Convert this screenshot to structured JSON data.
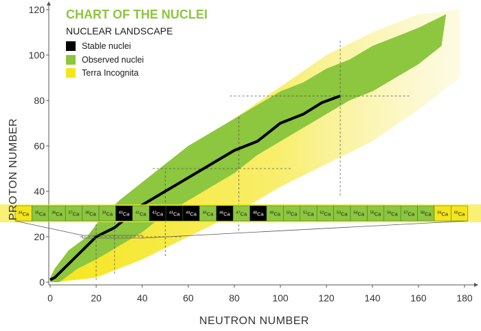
{
  "chart_data": {
    "type": "heatmap",
    "title": "CHART OF THE NUCLEI",
    "subtitle": "NUCLEAR LANDSCAPE",
    "xlabel": "NEUTRON NUMBER",
    "ylabel": "PROTON NUMBER",
    "xlim": [
      0,
      182
    ],
    "ylim": [
      -2,
      122
    ],
    "xticks": [
      0,
      20,
      40,
      60,
      80,
      100,
      120,
      140,
      160,
      180
    ],
    "yticks": [
      0,
      20,
      40,
      60,
      80,
      100,
      120
    ],
    "grid": false,
    "legend_position": "top-left",
    "colors": {
      "stable": "#000000",
      "observed": "#8dc63f",
      "terra": "#f5e61c",
      "title": "#8dc63f",
      "magic_line": "#555555"
    },
    "legend": [
      {
        "label": "Stable nuclei",
        "color": "#000000"
      },
      {
        "label": "Observed nuclei",
        "color": "#8dc63f"
      },
      {
        "label": "Terra Incognita",
        "color": "#f5e61c"
      }
    ],
    "observed_band": {
      "lower_edge": [
        [
          0,
          0
        ],
        [
          4,
          0
        ],
        [
          12,
          6
        ],
        [
          20,
          10
        ],
        [
          30,
          16
        ],
        [
          40,
          22
        ],
        [
          50,
          30
        ],
        [
          60,
          36
        ],
        [
          70,
          42
        ],
        [
          80,
          48
        ],
        [
          90,
          56
        ],
        [
          100,
          62
        ],
        [
          110,
          68
        ],
        [
          120,
          74
        ],
        [
          130,
          80
        ],
        [
          140,
          84
        ],
        [
          150,
          90
        ],
        [
          160,
          96
        ],
        [
          170,
          104
        ]
      ],
      "upper_edge": [
        [
          0,
          2
        ],
        [
          2,
          6
        ],
        [
          8,
          14
        ],
        [
          16,
          20
        ],
        [
          22,
          28
        ],
        [
          30,
          36
        ],
        [
          40,
          44
        ],
        [
          50,
          52
        ],
        [
          60,
          60
        ],
        [
          70,
          66
        ],
        [
          80,
          72
        ],
        [
          90,
          78
        ],
        [
          100,
          84
        ],
        [
          110,
          88
        ],
        [
          120,
          94
        ],
        [
          130,
          98
        ],
        [
          140,
          104
        ],
        [
          150,
          108
        ],
        [
          160,
          112
        ],
        [
          172,
          118
        ]
      ]
    },
    "terra_incognita_band": {
      "lower_edge": [
        [
          2,
          0
        ],
        [
          20,
          2
        ],
        [
          40,
          10
        ],
        [
          60,
          20
        ],
        [
          80,
          30
        ],
        [
          100,
          42
        ],
        [
          120,
          52
        ],
        [
          140,
          62
        ],
        [
          160,
          76
        ],
        [
          178,
          90
        ]
      ],
      "upper_edge": [
        [
          0,
          2
        ],
        [
          10,
          12
        ],
        [
          20,
          22
        ],
        [
          30,
          32
        ],
        [
          40,
          40
        ],
        [
          60,
          56
        ],
        [
          80,
          72
        ],
        [
          100,
          86
        ],
        [
          120,
          100
        ],
        [
          140,
          110
        ],
        [
          160,
          118
        ],
        [
          178,
          120
        ]
      ]
    },
    "stable_valley": [
      [
        0,
        1
      ],
      [
        2,
        2
      ],
      [
        6,
        6
      ],
      [
        10,
        10
      ],
      [
        16,
        16
      ],
      [
        20,
        20
      ],
      [
        28,
        24
      ],
      [
        40,
        34
      ],
      [
        50,
        40
      ],
      [
        60,
        46
      ],
      [
        70,
        52
      ],
      [
        80,
        58
      ],
      [
        90,
        62
      ],
      [
        100,
        70
      ],
      [
        110,
        74
      ],
      [
        118,
        79
      ],
      [
        126,
        82
      ]
    ],
    "magic_numbers": {
      "proton": [
        20,
        28,
        50,
        82
      ],
      "neutron": [
        20,
        28,
        50,
        82,
        126
      ]
    },
    "calcium_isotopes": {
      "proton_number": 20,
      "stable": [
        40,
        42,
        43,
        44,
        46,
        48
      ],
      "terra": [
        34,
        59,
        60
      ],
      "items": [
        {
          "label": "Ca",
          "mass": "34"
        },
        {
          "label": "Ca",
          "mass": "35"
        },
        {
          "label": "Ca",
          "mass": "36"
        },
        {
          "label": "Ca",
          "mass": "37"
        },
        {
          "label": "Ca",
          "mass": "38"
        },
        {
          "label": "Ca",
          "mass": "39"
        },
        {
          "label": "Ca",
          "mass": "40"
        },
        {
          "label": "Ca",
          "mass": "41"
        },
        {
          "label": "Ca",
          "mass": "42"
        },
        {
          "label": "Ca",
          "mass": "43"
        },
        {
          "label": "Ca",
          "mass": "44"
        },
        {
          "label": "Ca",
          "mass": "45"
        },
        {
          "label": "Ca",
          "mass": "46"
        },
        {
          "label": "Ca",
          "mass": "47"
        },
        {
          "label": "Ca",
          "mass": "48"
        },
        {
          "label": "Ca",
          "mass": "49"
        },
        {
          "label": "Ca",
          "mass": "50"
        },
        {
          "label": "Ca",
          "mass": "51"
        },
        {
          "label": "Ca",
          "mass": "52"
        },
        {
          "label": "Ca",
          "mass": "53"
        },
        {
          "label": "Ca",
          "mass": "54"
        },
        {
          "label": "Ca",
          "mass": "55"
        },
        {
          "label": "Ca",
          "mass": "56"
        },
        {
          "label": "Ca",
          "mass": "57"
        },
        {
          "label": "Ca",
          "mass": "58"
        },
        {
          "label": "Ca",
          "mass": "59"
        },
        {
          "label": "Ca",
          "mass": "60"
        }
      ]
    }
  }
}
